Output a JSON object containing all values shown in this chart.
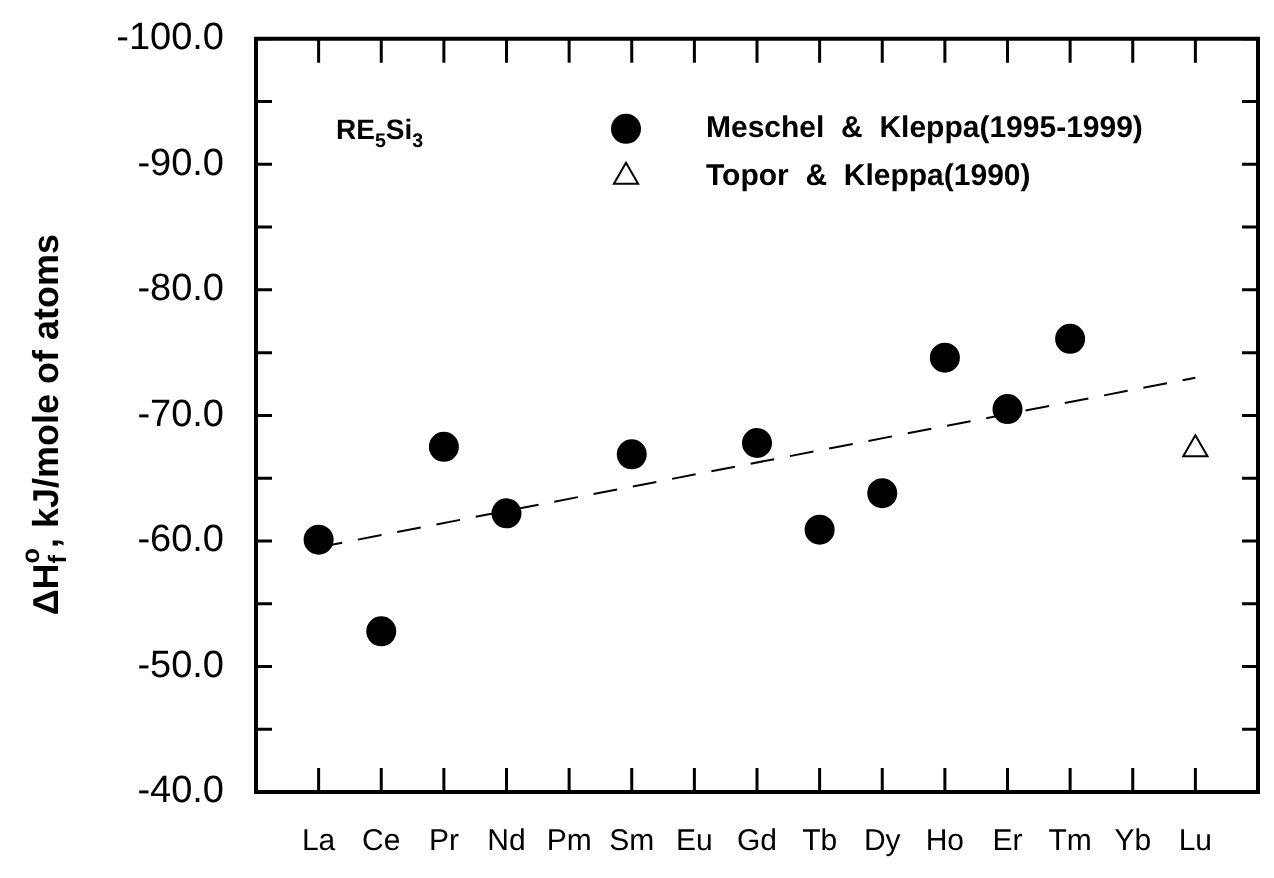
{
  "chart_data": {
    "type": "scatter",
    "ylabel": "ΔH$^{o}$$_{f}$, kJ/mole of atoms",
    "categories": [
      "La",
      "Ce",
      "Pr",
      "Nd",
      "Pm",
      "Sm",
      "Eu",
      "Gd",
      "Tb",
      "Dy",
      "Ho",
      "Er",
      "Tm",
      "Yb",
      "Lu"
    ],
    "ylim": [
      -40,
      -100
    ],
    "yticks": [
      {
        "value": -40,
        "label": "-40.0"
      },
      {
        "value": -45,
        "label": null
      },
      {
        "value": -50,
        "label": "-50.0"
      },
      {
        "value": -55,
        "label": null
      },
      {
        "value": -60,
        "label": "-60.0"
      },
      {
        "value": -65,
        "label": null
      },
      {
        "value": -70,
        "label": "-70.0"
      },
      {
        "value": -75,
        "label": null
      },
      {
        "value": -80,
        "label": "-80.0"
      },
      {
        "value": -85,
        "label": null
      },
      {
        "value": -90,
        "label": "-90.0"
      },
      {
        "value": -95,
        "label": null
      },
      {
        "value": -100,
        "label": "-100.0"
      }
    ],
    "series": [
      {
        "name": "Meschel  &  Kleppa(1995-1999)",
        "color": "#000000",
        "marker": "circle",
        "values": [
          -60.1,
          -52.8,
          -67.5,
          -62.2,
          null,
          -66.9,
          null,
          -67.8,
          -60.9,
          -63.8,
          -74.6,
          -70.5,
          -76.1,
          null,
          null
        ]
      },
      {
        "name": "Topor  &  Kleppa(1990)",
        "color": "#000000",
        "marker": "triangle",
        "values": [
          null,
          null,
          null,
          null,
          null,
          null,
          null,
          null,
          null,
          null,
          null,
          null,
          null,
          null,
          -67.3
        ]
      },
      {
        "type": "line",
        "color": "#000000",
        "marker": "none",
        "line_style": "dashed",
        "values": [
          -59.5,
          null,
          null,
          null,
          null,
          null,
          null,
          null,
          null,
          null,
          null,
          null,
          null,
          null,
          -73.0
        ]
      }
    ],
    "annotations": [
      "RE$_{5}$Si$_{3}$"
    ],
    "legend": "top right",
    "grid": false
  }
}
